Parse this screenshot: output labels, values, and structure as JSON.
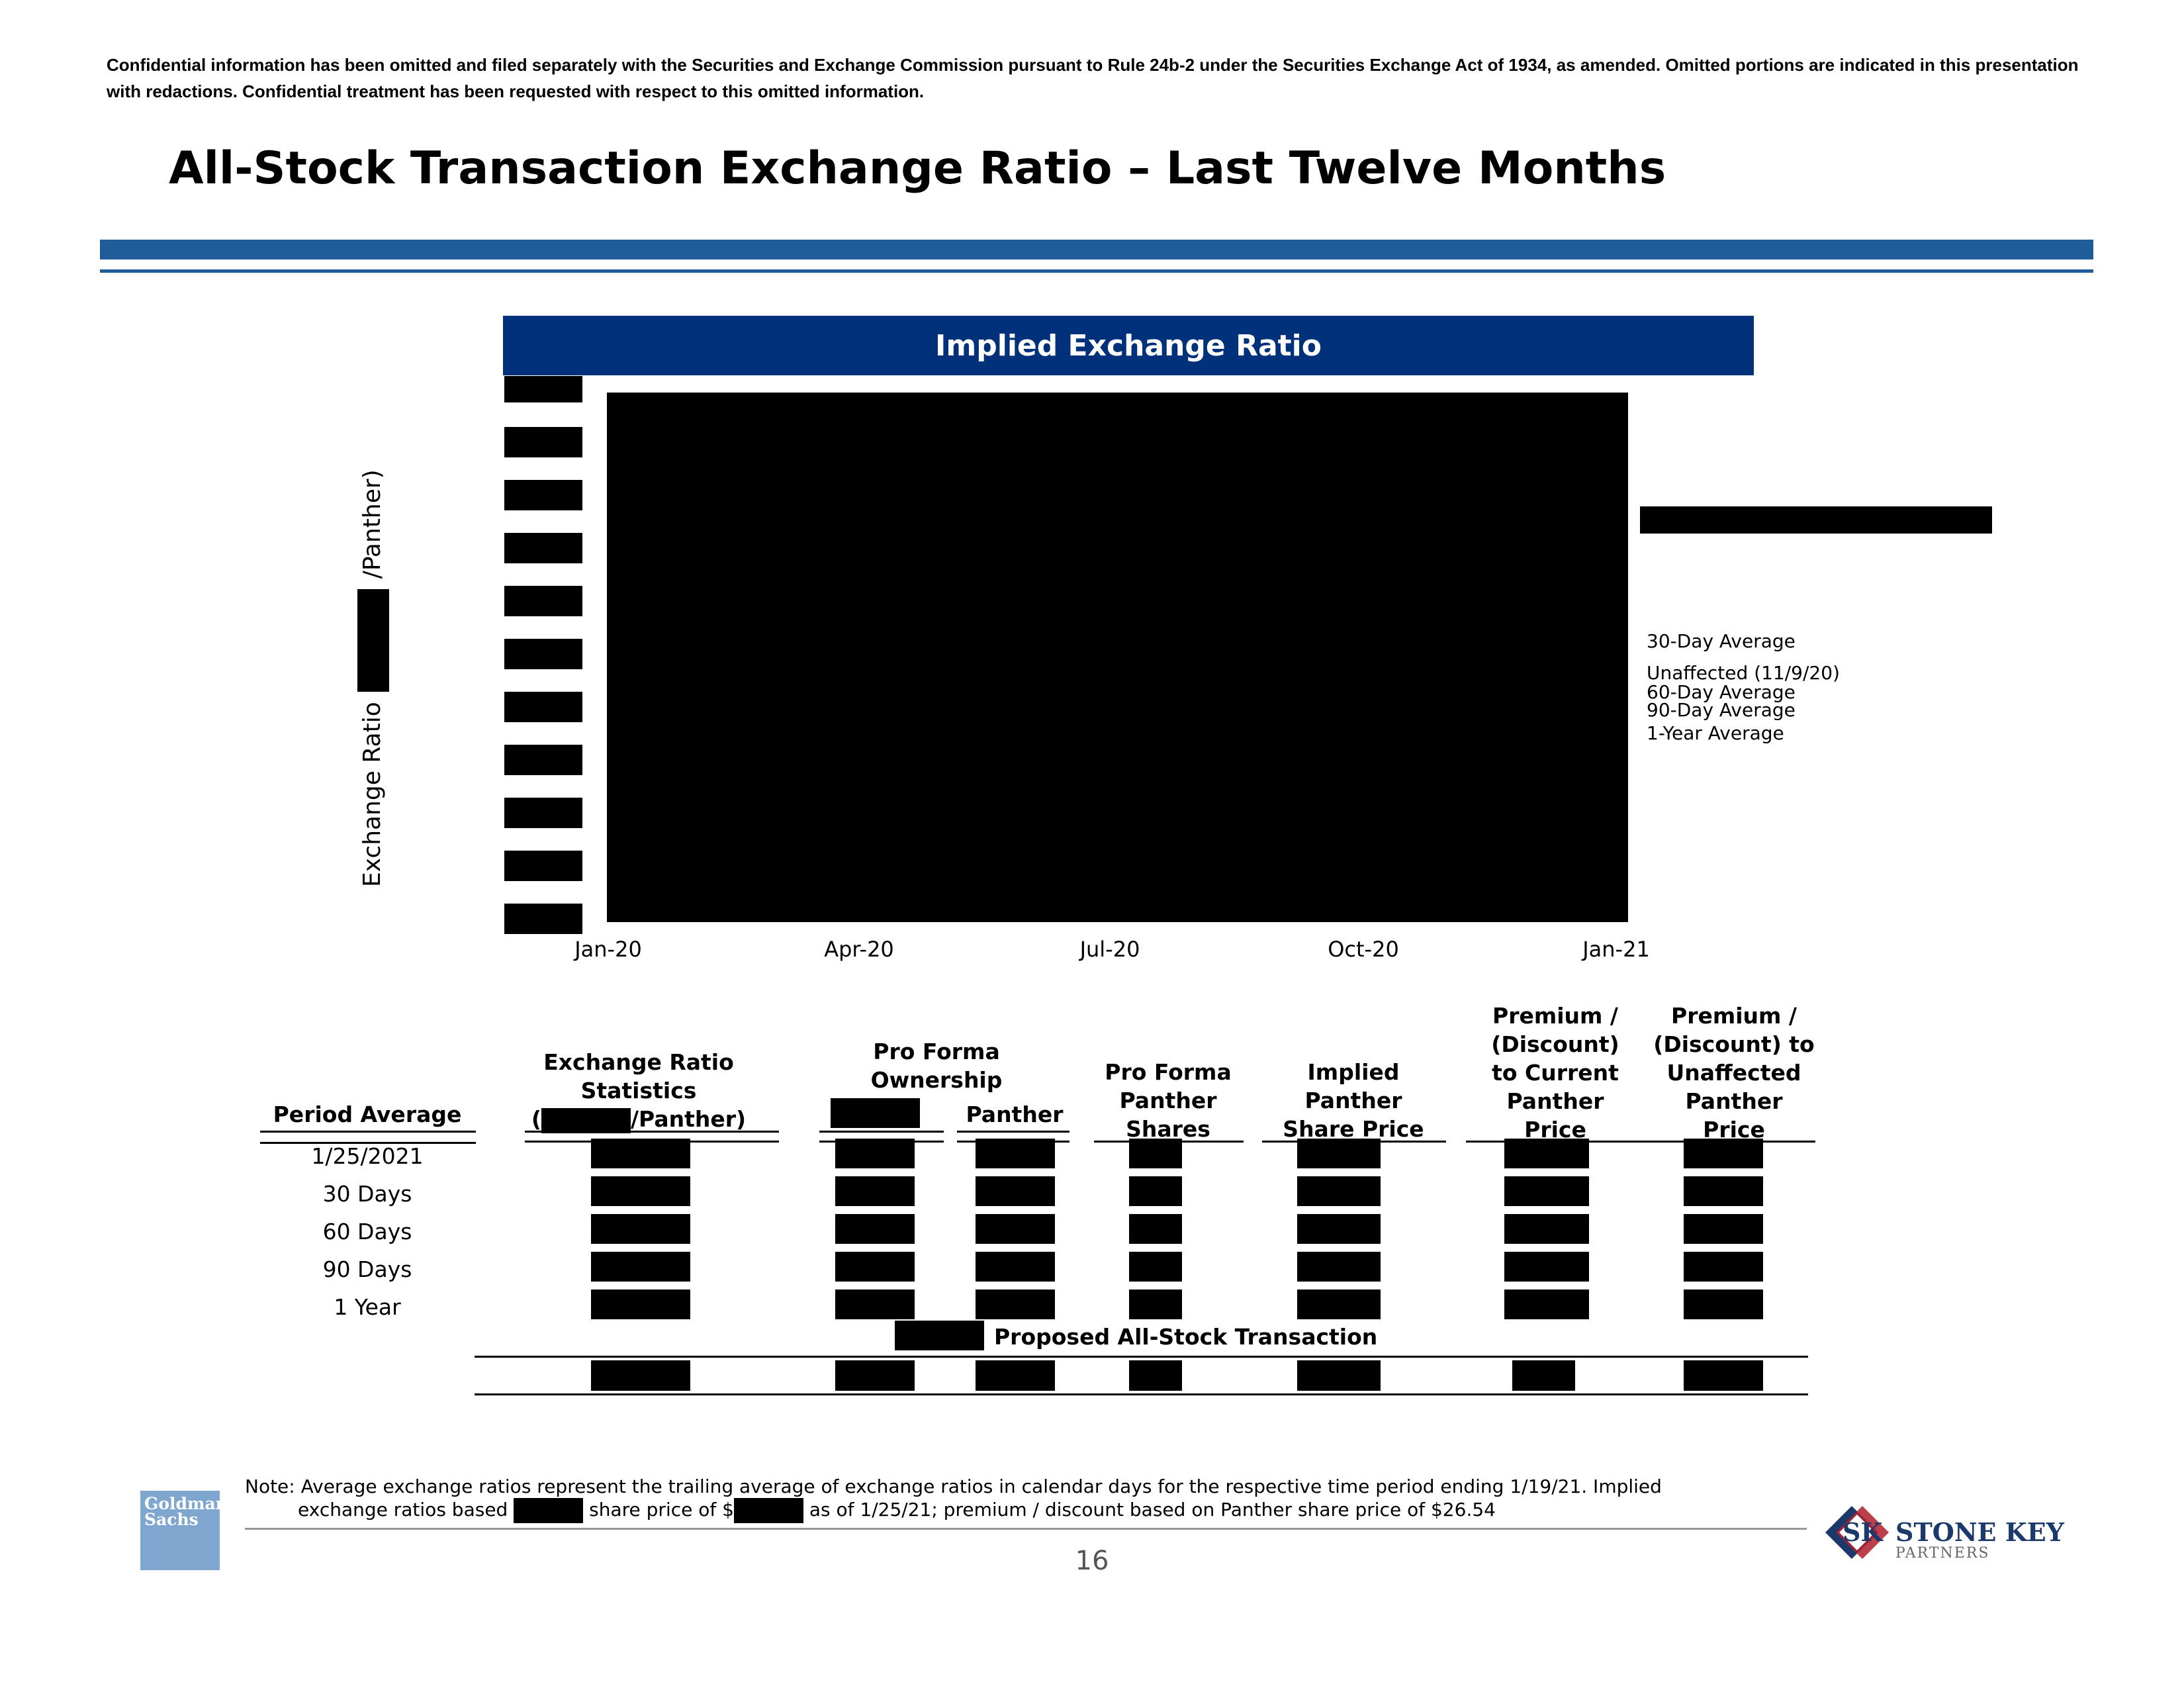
{
  "disclaimer": "Confidential information has been omitted and filed separately with the Securities and Exchange Commission pursuant to Rule 24b-2 under the Securities Exchange Act of 1934, as amended. Omitted portions are indicated in this presentation with redactions. Confidential treatment has been requested with respect to this omitted information.",
  "page_title": "All-Stock Transaction Exchange Ratio – Last Twelve Months",
  "chart": {
    "header": "Implied Exchange Ratio",
    "ylabel_left": "Exchange Ratio",
    "ylabel_right": "/Panther)",
    "x_ticks": [
      "Jan-20",
      "Apr-20",
      "Jul-20",
      "Oct-20",
      "Jan-21"
    ],
    "legend": [
      "30-Day Average",
      "Unaffected (11/9/20)",
      "60-Day Average",
      "90-Day Average",
      "1-Year Average"
    ]
  },
  "chart_data": {
    "type": "line",
    "title": "Implied Exchange Ratio",
    "x": [
      "Jan-20",
      "Apr-20",
      "Jul-20",
      "Oct-20",
      "Jan-21"
    ],
    "xlabel": "",
    "ylabel": "Exchange Ratio (/Panther)",
    "series": [],
    "grid": false,
    "legend": [
      "30-Day Average",
      "Unaffected (11/9/20)",
      "60-Day Average",
      "90-Day Average",
      "1-Year Average"
    ],
    "legend_position": "right"
  },
  "table": {
    "headers": {
      "period": "Period Average",
      "ratio_line1": "Exchange Ratio",
      "ratio_line2": "Statistics",
      "ratio_line3_open": "(",
      "ratio_line3_close": "/Panther)",
      "proforma_line1": "Pro Forma",
      "proforma_line2": "Ownership",
      "proforma_panther": "Panther",
      "pf_shares_line1": "Pro Forma",
      "pf_shares_line2": "Panther",
      "pf_shares_line3": "Shares",
      "implied_line1": "Implied",
      "implied_line2": "Panther",
      "implied_line3": "Share Price",
      "prem_cur_line1": "Premium /",
      "prem_cur_line2": "(Discount)",
      "prem_cur_line3": "to Current",
      "prem_cur_line4": "Panther",
      "prem_cur_line5": "Price",
      "prem_un_line1": "Premium /",
      "prem_un_line2": "(Discount) to",
      "prem_un_line3": "Unaffected",
      "prem_un_line4": "Panther",
      "prem_un_line5": "Price"
    },
    "rows": [
      "1/25/2021",
      "30 Days",
      "60 Days",
      "90 Days",
      "1 Year"
    ],
    "proposed_label": "Proposed All-Stock Transaction"
  },
  "note": {
    "line1": "Note: Average exchange ratios represent the trailing average of exchange ratios in calendar days for the respective time period ending 1/19/21. Implied",
    "line2_a": "exchange ratios based",
    "line2_b": "share price of $",
    "line2_c": "as of 1/25/21; premium / discount based on Panther share price of $26.54"
  },
  "page_number": "16",
  "logos": {
    "gs_line1": "Goldman",
    "gs_line2": "Sachs",
    "sk_mark": "SK",
    "sk_name": "STONE KEY",
    "sk_sub": "PARTNERS"
  },
  "colors": {
    "brand_blue": "#1f5c9a",
    "header_navy": "#00317a",
    "gs_blue": "#7fa6cf",
    "sk_red": "#b01e2d",
    "sk_navy": "#1b3a6b"
  }
}
